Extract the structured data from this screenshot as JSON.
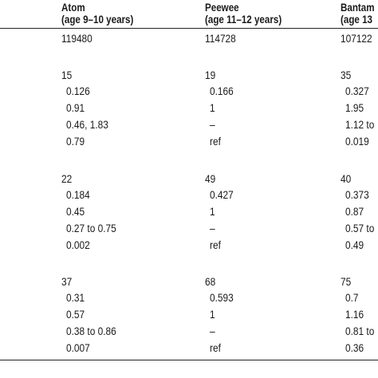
{
  "headers": [
    {
      "title": "Atom",
      "subtitle": "(age 9–10 years)"
    },
    {
      "title": "Peewee",
      "subtitle": "(age 11–12 years)"
    },
    {
      "title": "Bantam",
      "subtitle": "(age 13"
    }
  ],
  "rows": [
    {
      "type": "main",
      "cells": [
        "119480",
        "114728",
        "107122"
      ]
    },
    {
      "type": "main",
      "cells": [
        "15",
        "19",
        "35"
      ]
    },
    {
      "type": "sub",
      "cells": [
        "0.126",
        "0.166",
        "0.327"
      ]
    },
    {
      "type": "sub",
      "cells": [
        "0.91",
        "1",
        "1.95"
      ]
    },
    {
      "type": "sub",
      "cells": [
        "0.46, 1.83",
        "–",
        "1.12 to"
      ]
    },
    {
      "type": "sub",
      "cells": [
        "0.79",
        "ref",
        "0.019"
      ]
    },
    {
      "type": "main",
      "cells": [
        "22",
        "49",
        "40"
      ]
    },
    {
      "type": "sub",
      "cells": [
        "0.184",
        "0.427",
        "0.373"
      ]
    },
    {
      "type": "sub",
      "cells": [
        "0.45",
        "1",
        "0.87"
      ]
    },
    {
      "type": "sub",
      "cells": [
        "0.27 to 0.75",
        "–",
        "0.57 to"
      ]
    },
    {
      "type": "sub",
      "cells": [
        "0.002",
        "ref",
        "0.49"
      ]
    },
    {
      "type": "main",
      "cells": [
        "37",
        "68",
        "75"
      ]
    },
    {
      "type": "sub",
      "cells": [
        "0.31",
        "0.593",
        "0.7"
      ]
    },
    {
      "type": "sub",
      "cells": [
        "0.57",
        "1",
        "1.16"
      ]
    },
    {
      "type": "sub",
      "cells": [
        "0.38 to 0.86",
        "–",
        "0.81 to"
      ]
    },
    {
      "type": "sub",
      "cells": [
        "0.007",
        "ref",
        "0.36"
      ]
    }
  ]
}
